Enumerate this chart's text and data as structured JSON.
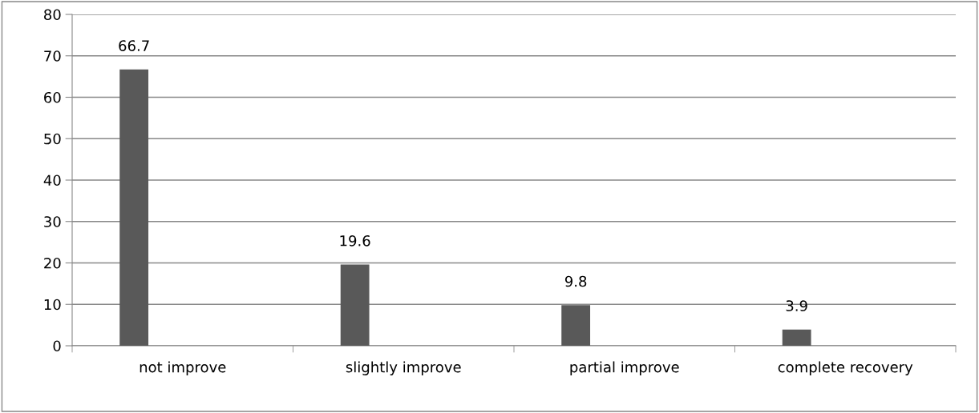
{
  "chart_data": {
    "type": "bar",
    "categories": [
      "not improve",
      "slightly improve",
      "partial improve",
      "complete recovery"
    ],
    "values": [
      66.7,
      19.6,
      9.8,
      3.9
    ],
    "color": "#595959",
    "ylim": [
      0,
      80
    ],
    "yticks": [
      0,
      10,
      20,
      30,
      40,
      50,
      60,
      70,
      80
    ],
    "grid": "y",
    "data_labels": true,
    "legend": false
  }
}
